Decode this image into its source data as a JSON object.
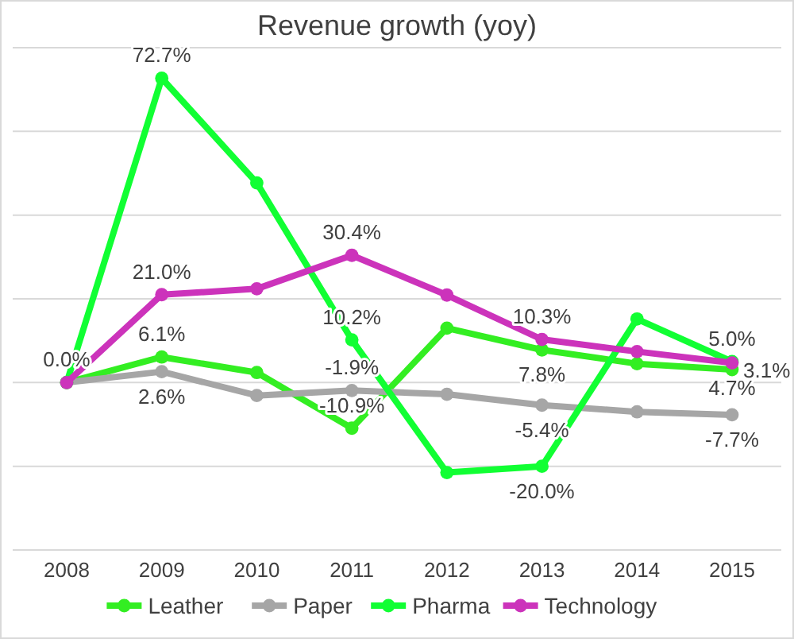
{
  "chart_data": {
    "type": "line",
    "title": "Revenue growth (yoy)",
    "categories": [
      "2008",
      "2009",
      "2010",
      "2011",
      "2012",
      "2013",
      "2014",
      "2015"
    ],
    "ylim": [
      -40,
      80
    ],
    "yticks": [
      {
        "value": -40,
        "label": null
      },
      {
        "value": -20,
        "label": null
      },
      {
        "value": 0,
        "label": null
      },
      {
        "value": 20,
        "label": null
      },
      {
        "value": 40,
        "label": null
      },
      {
        "value": 60,
        "label": null
      },
      {
        "value": 80,
        "label": null
      }
    ],
    "tick_labels": "x",
    "grid": "y",
    "legend": "bottom",
    "marker": "circle",
    "line_style": "solid",
    "series": [
      {
        "name": "Leather",
        "color": "#33ee22",
        "values": [
          0,
          6.1,
          2.4,
          -10.9,
          13.0,
          7.8,
          4.5,
          3.1
        ],
        "value_labels": [
          null,
          "6.1%",
          null,
          "-10.9%",
          null,
          "7.8%",
          null,
          "3.1%"
        ]
      },
      {
        "name": "Paper",
        "color": "#a6a6a6",
        "values": [
          0,
          2.6,
          -3.1,
          -1.9,
          -2.8,
          -5.4,
          -7.0,
          -7.7
        ],
        "value_labels": [
          "0.0%",
          "2.6%",
          null,
          "-1.9%",
          null,
          "-5.4%",
          null,
          "-7.7%"
        ]
      },
      {
        "name": "Pharma",
        "color": "#11ff33",
        "values": [
          0,
          72.7,
          47.7,
          10.2,
          -21.5,
          -20.0,
          15.2,
          5.0
        ],
        "value_labels": [
          null,
          "72.7%",
          null,
          "10.2%",
          null,
          "-20.0%",
          null,
          "5.0%"
        ]
      },
      {
        "name": "Technology",
        "color": "#cc33bb",
        "values": [
          0,
          21.0,
          22.4,
          30.4,
          20.9,
          10.3,
          7.4,
          4.7
        ],
        "value_labels": [
          null,
          "21.0%",
          null,
          "30.4%",
          null,
          "10.3%",
          null,
          "4.7%"
        ]
      }
    ]
  }
}
